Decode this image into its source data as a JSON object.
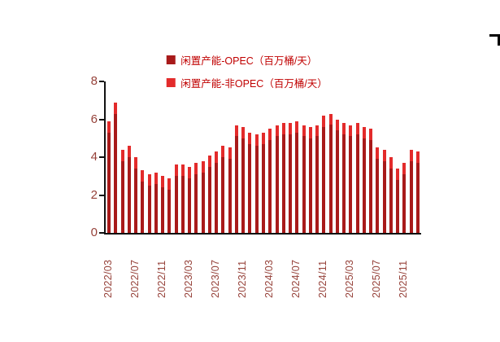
{
  "page": {
    "background": "#ffffff"
  },
  "legend": {
    "items": [
      {
        "label": "闲置产能-OPEC（百万桶/天）",
        "color": "#a81a1a"
      },
      {
        "label": "闲置产能-非OPEC（百万桶/天）",
        "color": "#e32b2b"
      }
    ]
  },
  "chart_data": {
    "type": "bar",
    "stacked": true,
    "title": "",
    "xlabel": "",
    "ylabel": "",
    "ylim": [
      0,
      8
    ],
    "yticks": [
      0,
      2,
      4,
      6,
      8
    ],
    "grid": false,
    "legend_position": "top",
    "xtick_every": 4,
    "x": [
      "2022/03",
      "2022/04",
      "2022/05",
      "2022/06",
      "2022/07",
      "2022/08",
      "2022/09",
      "2022/10",
      "2022/11",
      "2022/12",
      "2023/01",
      "2023/02",
      "2023/03",
      "2023/04",
      "2023/05",
      "2023/06",
      "2023/07",
      "2023/08",
      "2023/09",
      "2023/10",
      "2023/11",
      "2023/12",
      "2024/01",
      "2024/02",
      "2024/03",
      "2024/04",
      "2024/05",
      "2024/06",
      "2024/07",
      "2024/08",
      "2024/09",
      "2024/10",
      "2024/11",
      "2024/12",
      "2025/01",
      "2025/02",
      "2025/03",
      "2025/04",
      "2025/05",
      "2025/06",
      "2025/07",
      "2025/08",
      "2025/09",
      "2025/10",
      "2025/11",
      "2025/12",
      "2026/01"
    ],
    "series": [
      {
        "name": "闲置产能-OPEC（百万桶/天）",
        "color": "#a81a1a",
        "values": [
          5.3,
          6.3,
          3.8,
          4.0,
          3.4,
          2.7,
          2.5,
          2.6,
          2.4,
          2.3,
          3.0,
          3.0,
          2.9,
          3.1,
          3.2,
          3.5,
          3.7,
          4.0,
          3.9,
          5.1,
          5.0,
          4.7,
          4.6,
          4.7,
          4.9,
          5.1,
          5.2,
          5.2,
          5.3,
          5.1,
          5.0,
          5.1,
          5.6,
          5.7,
          5.4,
          5.2,
          5.1,
          5.2,
          5.0,
          4.9,
          3.9,
          3.8,
          3.4,
          2.8,
          3.1,
          3.8,
          3.7
        ]
      },
      {
        "name": "闲置产能-非OPEC（百万桶/天）",
        "color": "#e32b2b",
        "values": [
          0.6,
          0.6,
          0.6,
          0.6,
          0.6,
          0.6,
          0.6,
          0.6,
          0.6,
          0.6,
          0.6,
          0.6,
          0.6,
          0.6,
          0.6,
          0.6,
          0.6,
          0.6,
          0.6,
          0.6,
          0.6,
          0.6,
          0.6,
          0.6,
          0.6,
          0.6,
          0.6,
          0.6,
          0.6,
          0.6,
          0.6,
          0.6,
          0.6,
          0.6,
          0.6,
          0.6,
          0.6,
          0.6,
          0.6,
          0.6,
          0.6,
          0.6,
          0.6,
          0.6,
          0.6,
          0.6,
          0.6
        ]
      }
    ],
    "totals_note": "total bar height = OPEC + non-OPEC, range approx 2.9 to 6.9"
  }
}
